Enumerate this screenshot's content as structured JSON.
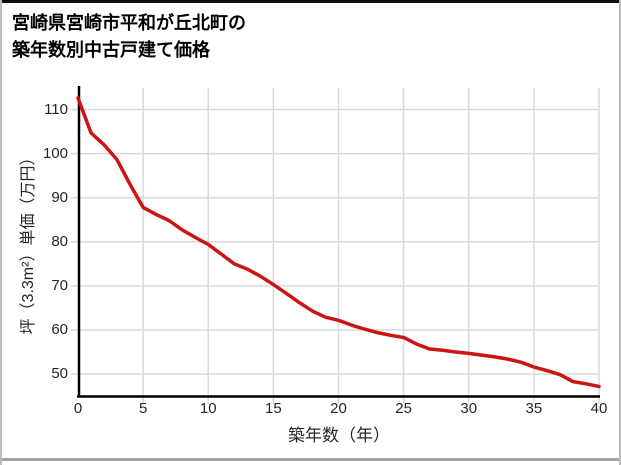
{
  "page": {
    "title_line1": "宮崎県宮崎市平和が丘北町の",
    "title_line2": "築年数別中古戸建て価格"
  },
  "chart_data": {
    "type": "line",
    "title": "宮崎県宮崎市平和が丘北町の 築年数別中古戸建て価格",
    "xlabel": "築年数（年）",
    "ylabel": "坪（3.3m²）単価（万円）",
    "x": [
      0,
      1,
      2,
      3,
      4,
      5,
      6,
      7,
      8,
      9,
      10,
      11,
      12,
      13,
      14,
      15,
      16,
      17,
      18,
      19,
      20,
      21,
      22,
      23,
      24,
      25,
      26,
      27,
      28,
      29,
      30,
      31,
      32,
      33,
      34,
      35,
      36,
      37,
      38,
      39,
      40
    ],
    "values": [
      112.6,
      104.7,
      102.0,
      98.6,
      93.0,
      87.8,
      86.2,
      84.8,
      82.7,
      81.0,
      79.4,
      77.2,
      75.0,
      73.8,
      72.2,
      70.3,
      68.3,
      66.2,
      64.3,
      62.9,
      62.2,
      61.1,
      60.2,
      59.4,
      58.8,
      58.3,
      56.8,
      55.7,
      55.4,
      55.0,
      54.7,
      54.3,
      53.9,
      53.4,
      52.7,
      51.6,
      50.8,
      49.9,
      48.3,
      47.8,
      47.2
    ],
    "x_ticks": [
      0,
      5,
      10,
      15,
      20,
      25,
      30,
      35,
      40
    ],
    "y_ticks": [
      50,
      60,
      70,
      80,
      90,
      100,
      110
    ],
    "xlim": [
      0,
      40
    ],
    "ylim": [
      45,
      115
    ],
    "grid": true,
    "legend_position": "none",
    "line_color": "#cc1414",
    "grid_color": "#d9d9d9",
    "axis_color": "#000000",
    "tick_text_color": "#262626"
  }
}
